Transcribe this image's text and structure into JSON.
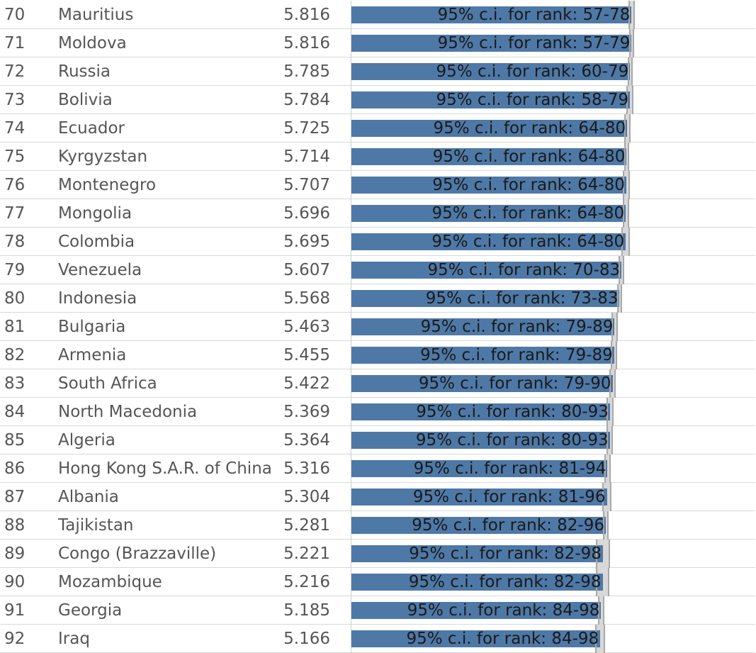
{
  "chart_data": {
    "type": "bar",
    "columns": [
      "rank",
      "country",
      "score",
      "ci_label"
    ],
    "xlim": [
      0,
      8.4
    ],
    "colors": {
      "bar": "#4e79a7",
      "ci": "#d8d8d8"
    },
    "rows": [
      {
        "rank": "70",
        "country": "Mauritius",
        "score": "5.816",
        "value": 5.816,
        "ci_low": 5.75,
        "ci_high": 5.88,
        "label": "95% c.i. for rank: 57-78"
      },
      {
        "rank": "71",
        "country": "Moldova",
        "score": "5.816",
        "value": 5.816,
        "ci_low": 5.76,
        "ci_high": 5.87,
        "label": "95% c.i. for rank: 57-79"
      },
      {
        "rank": "72",
        "country": "Russia",
        "score": "5.785",
        "value": 5.785,
        "ci_low": 5.73,
        "ci_high": 5.84,
        "label": "95% c.i. for rank: 60-79"
      },
      {
        "rank": "73",
        "country": "Bolivia",
        "score": "5.784",
        "value": 5.784,
        "ci_low": 5.71,
        "ci_high": 5.86,
        "label": "95% c.i. for rank: 58-79"
      },
      {
        "rank": "74",
        "country": "Ecuador",
        "score": "5.725",
        "value": 5.725,
        "ci_low": 5.66,
        "ci_high": 5.79,
        "label": "95% c.i. for rank: 64-80"
      },
      {
        "rank": "75",
        "country": "Kyrgyzstan",
        "score": "5.714",
        "value": 5.714,
        "ci_low": 5.66,
        "ci_high": 5.77,
        "label": "95% c.i. for rank: 64-80"
      },
      {
        "rank": "76",
        "country": "Montenegro",
        "score": "5.707",
        "value": 5.707,
        "ci_low": 5.63,
        "ci_high": 5.78,
        "label": "95% c.i. for rank: 64-80"
      },
      {
        "rank": "77",
        "country": "Mongolia",
        "score": "5.696",
        "value": 5.696,
        "ci_low": 5.63,
        "ci_high": 5.76,
        "label": "95% c.i. for rank: 64-80"
      },
      {
        "rank": "78",
        "country": "Colombia",
        "score": "5.695",
        "value": 5.695,
        "ci_low": 5.61,
        "ci_high": 5.78,
        "label": "95% c.i. for rank: 64-80"
      },
      {
        "rank": "79",
        "country": "Venezuela",
        "score": "5.607",
        "value": 5.607,
        "ci_low": 5.55,
        "ci_high": 5.66,
        "label": "95% c.i. for rank: 70-83"
      },
      {
        "rank": "80",
        "country": "Indonesia",
        "score": "5.568",
        "value": 5.568,
        "ci_low": 5.52,
        "ci_high": 5.62,
        "label": "95% c.i. for rank: 73-83"
      },
      {
        "rank": "81",
        "country": "Bulgaria",
        "score": "5.463",
        "value": 5.463,
        "ci_low": 5.4,
        "ci_high": 5.53,
        "label": "95% c.i. for rank: 79-89"
      },
      {
        "rank": "82",
        "country": "Armenia",
        "score": "5.455",
        "value": 5.455,
        "ci_low": 5.39,
        "ci_high": 5.52,
        "label": "95% c.i. for rank: 79-89"
      },
      {
        "rank": "83",
        "country": "South Africa",
        "score": "5.422",
        "value": 5.422,
        "ci_low": 5.36,
        "ci_high": 5.49,
        "label": "95% c.i. for rank: 79-90"
      },
      {
        "rank": "84",
        "country": "North Macedonia",
        "score": "5.369",
        "value": 5.369,
        "ci_low": 5.3,
        "ci_high": 5.44,
        "label": "95% c.i. for rank: 80-93"
      },
      {
        "rank": "85",
        "country": "Algeria",
        "score": "5.364",
        "value": 5.364,
        "ci_low": 5.3,
        "ci_high": 5.43,
        "label": "95% c.i. for rank: 80-93"
      },
      {
        "rank": "86",
        "country": "Hong Kong S.A.R. of China",
        "score": "5.316",
        "value": 5.316,
        "ci_low": 5.25,
        "ci_high": 5.38,
        "label": "95% c.i. for rank: 81-94"
      },
      {
        "rank": "87",
        "country": "Albania",
        "score": "5.304",
        "value": 5.304,
        "ci_low": 5.21,
        "ci_high": 5.4,
        "label": "95% c.i. for rank: 81-96"
      },
      {
        "rank": "88",
        "country": "Tajikistan",
        "score": "5.281",
        "value": 5.281,
        "ci_low": 5.22,
        "ci_high": 5.34,
        "label": "95% c.i. for rank: 82-96"
      },
      {
        "rank": "89",
        "country": "Congo (Brazzaville)",
        "score": "5.221",
        "value": 5.221,
        "ci_low": 5.07,
        "ci_high": 5.37,
        "label": "95% c.i. for rank: 82-98"
      },
      {
        "rank": "90",
        "country": "Mozambique",
        "score": "5.216",
        "value": 5.216,
        "ci_low": 5.07,
        "ci_high": 5.36,
        "label": "95% c.i. for rank: 82-98"
      },
      {
        "rank": "91",
        "country": "Georgia",
        "score": "5.185",
        "value": 5.185,
        "ci_low": 5.12,
        "ci_high": 5.25,
        "label": "95% c.i. for rank: 84-98"
      },
      {
        "rank": "92",
        "country": "Iraq",
        "score": "5.166",
        "value": 5.166,
        "ci_low": 5.06,
        "ci_high": 5.27,
        "label": "95% c.i. for rank: 84-98"
      }
    ]
  }
}
